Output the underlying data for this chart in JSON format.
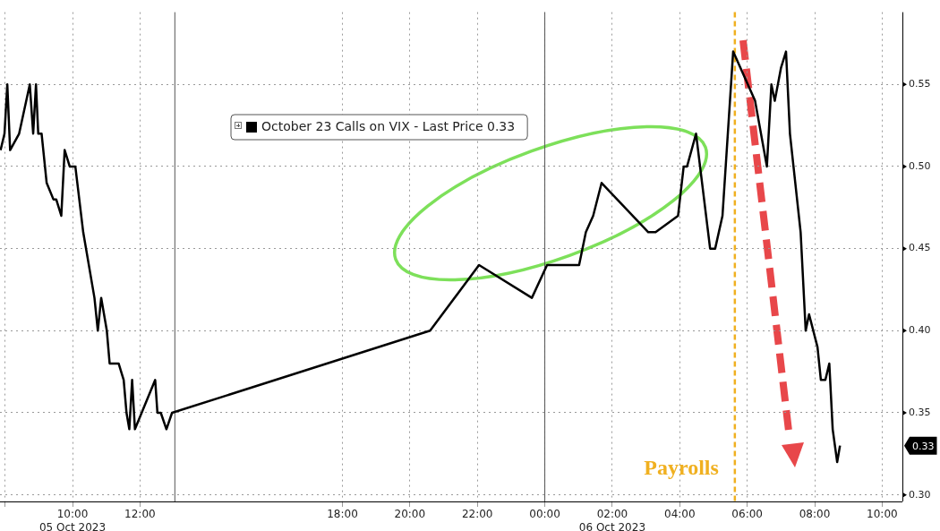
{
  "chart_data": {
    "type": "line",
    "x": [
      "2023-10-05T07:52",
      "2023-10-05T07:59",
      "2023-10-05T08:04",
      "2023-10-05T08:09",
      "2023-10-05T08:25",
      "2023-10-05T08:44",
      "2023-10-05T08:50",
      "2023-10-05T08:55",
      "2023-10-05T08:59",
      "2023-10-05T09:05",
      "2023-10-05T09:14",
      "2023-10-05T09:26",
      "2023-10-05T09:31",
      "2023-10-05T09:40",
      "2023-10-05T09:46",
      "2023-10-05T09:55",
      "2023-10-05T10:05",
      "2023-10-05T10:19",
      "2023-10-05T10:39",
      "2023-10-05T10:45",
      "2023-10-05T10:51",
      "2023-10-05T11:01",
      "2023-10-05T11:06",
      "2023-10-05T11:22",
      "2023-10-05T11:31",
      "2023-10-05T11:36",
      "2023-10-05T11:41",
      "2023-10-05T11:46",
      "2023-10-05T11:51",
      "2023-10-05T12:27",
      "2023-10-05T12:31",
      "2023-10-05T12:37",
      "2023-10-05T12:47",
      "2023-10-05T12:57",
      "2023-10-05T20:36",
      "2023-10-05T22:03",
      "2023-10-05T23:37",
      "2023-10-06T00:04",
      "2023-10-06T01:01",
      "2023-10-06T01:13",
      "2023-10-06T01:26",
      "2023-10-06T01:41",
      "2023-10-06T03:04",
      "2023-10-06T03:17",
      "2023-10-06T03:57",
      "2023-10-06T04:07",
      "2023-10-06T04:13",
      "2023-10-06T04:29",
      "2023-10-06T04:54",
      "2023-10-06T05:03",
      "2023-10-06T05:16",
      "2023-10-06T05:35",
      "2023-10-06T06:14",
      "2023-10-06T06:35",
      "2023-10-06T06:43",
      "2023-10-06T06:49",
      "2023-10-06T07:00",
      "2023-10-06T07:09",
      "2023-10-06T07:16",
      "2023-10-06T07:35",
      "2023-10-06T07:44",
      "2023-10-06T07:50",
      "2023-10-06T08:05",
      "2023-10-06T08:11",
      "2023-10-06T08:19",
      "2023-10-06T08:26",
      "2023-10-06T08:32",
      "2023-10-06T08:40",
      "2023-10-06T08:45"
    ],
    "series": [
      {
        "name": "October 23 Calls on VIX - Last Price 0.33",
        "color": "#000000",
        "values": [
          0.51,
          0.52,
          0.55,
          0.51,
          0.52,
          0.55,
          0.52,
          0.55,
          0.52,
          0.52,
          0.49,
          0.48,
          0.48,
          0.47,
          0.51,
          0.5,
          0.5,
          0.46,
          0.42,
          0.4,
          0.42,
          0.4,
          0.38,
          0.38,
          0.37,
          0.35,
          0.34,
          0.37,
          0.34,
          0.37,
          0.35,
          0.35,
          0.34,
          0.35,
          0.4,
          0.44,
          0.42,
          0.44,
          0.44,
          0.46,
          0.47,
          0.49,
          0.46,
          0.46,
          0.47,
          0.5,
          0.5,
          0.52,
          0.45,
          0.45,
          0.47,
          0.57,
          0.54,
          0.5,
          0.55,
          0.54,
          0.56,
          0.57,
          0.52,
          0.46,
          0.4,
          0.41,
          0.39,
          0.37,
          0.37,
          0.38,
          0.34,
          0.32,
          0.33
        ]
      }
    ],
    "xlim": [
      "2023-10-05T07:51",
      "2023-10-06T10:36"
    ],
    "xticks": [
      {
        "value": "2023-10-05T08:00",
        "label": null
      },
      {
        "value": "2023-10-05T10:00",
        "label": "10:00\n05 Oct 2023"
      },
      {
        "value": "2023-10-05T12:00",
        "label": "12:00"
      },
      {
        "value": "2023-10-05T18:00",
        "label": "18:00"
      },
      {
        "value": "2023-10-05T20:00",
        "label": "20:00"
      },
      {
        "value": "2023-10-05T22:00",
        "label": "22:00"
      },
      {
        "value": "2023-10-06T00:00",
        "label": "00:00"
      },
      {
        "value": "2023-10-06T02:00",
        "label": "02:00\n06 Oct 2023"
      },
      {
        "value": "2023-10-06T04:00",
        "label": "04:00"
      },
      {
        "value": "2023-10-06T06:00",
        "label": "06:00"
      },
      {
        "value": "2023-10-06T08:00",
        "label": "08:00"
      },
      {
        "value": "2023-10-06T10:00",
        "label": "10:00"
      }
    ],
    "ylim": [
      0.296,
      0.594
    ],
    "yticks": [
      {
        "value": 0.3,
        "label": "0.30"
      },
      {
        "value": 0.35,
        "label": "0.35"
      },
      {
        "value": 0.4,
        "label": "0.40"
      },
      {
        "value": 0.45,
        "label": "0.45"
      },
      {
        "value": 0.5,
        "label": "0.50"
      },
      {
        "value": 0.55,
        "label": "0.55"
      }
    ],
    "ref_lines": [
      {
        "axis": "x",
        "value": "2023-10-05T13:02",
        "color": "#555555",
        "line_style": "solid"
      },
      {
        "axis": "x",
        "value": "2023-10-06T00:00",
        "color": "#555555",
        "line_style": "solid"
      },
      {
        "axis": "x",
        "value": "2023-10-06T05:38",
        "label": "Payrolls",
        "color": "#f0b020",
        "line_style": "dashed"
      }
    ],
    "annotations": [
      "0.33"
    ],
    "grid": true,
    "legend": "top left",
    "marker": "none",
    "line_style": "solid"
  }
}
